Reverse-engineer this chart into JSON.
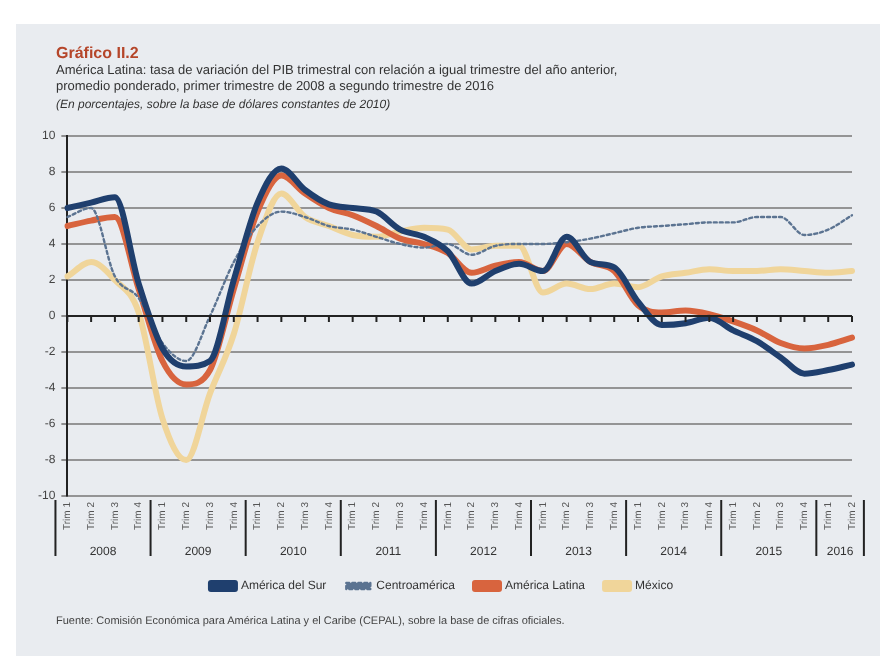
{
  "chart_data": {
    "type": "line",
    "title": "Gráfico II.2",
    "subtitle": "América Latina: tasa de variación del PIB trimestral con relación a igual trimestre del año anterior, promedio ponderado, primer trimestre de 2008 a segundo trimestre de 2016",
    "annotations": [
      "(En porcentajes, sobre la base de dólares constantes de 2010)",
      "Fuente: Comisión Económica para América Latina y el Caribe (CEPAL), sobre la base de cifras oficiales.",
      "2008",
      "2009",
      "2010",
      "2011",
      "2012",
      "2013",
      "2014",
      "2015",
      "2016"
    ],
    "categories": [
      "Trim 1",
      "Trim 2",
      "Trim 3",
      "Trim 4",
      "Trim 1",
      "Trim 2",
      "Trim 3",
      "Trim 4",
      "Trim 1",
      "Trim 2",
      "Trim 3",
      "Trim 4",
      "Trim 1",
      "Trim 2",
      "Trim 3",
      "Trim 4",
      "Trim 1",
      "Trim 2",
      "Trim 3",
      "Trim 4",
      "Trim 1",
      "Trim 2",
      "Trim 3",
      "Trim 4",
      "Trim 1",
      "Trim 2",
      "Trim 3",
      "Trim 4",
      "Trim 1",
      "Trim 2",
      "Trim 3",
      "Trim 4",
      "Trim 1",
      "Trim 2"
    ],
    "series": [
      {
        "name": "América del Sur",
        "color": "#1f3f6e",
        "values": [
          6.0,
          6.3,
          6.6,
          1.8,
          -1.8,
          -2.8,
          -2.5,
          2.0,
          6.3,
          8.2,
          7.0,
          6.2,
          6.0,
          5.8,
          4.8,
          4.4,
          3.6,
          1.8,
          2.5,
          2.9,
          2.5,
          4.4,
          3.0,
          2.7,
          0.8,
          -0.5,
          -0.4,
          -0.1,
          -0.8,
          -1.4,
          -2.3,
          -3.2,
          -3.0,
          -2.7
        ]
      },
      {
        "name": "Centroamérica",
        "color": "#5b7391",
        "line_style": "dotted",
        "values": [
          5.5,
          6.0,
          2.2,
          1.0,
          -1.5,
          -2.5,
          0.0,
          3.0,
          5.0,
          5.8,
          5.5,
          5.0,
          4.8,
          4.4,
          4.0,
          3.8,
          4.0,
          3.4,
          3.9,
          4.0,
          4.0,
          4.1,
          4.3,
          4.6,
          4.9,
          5.0,
          5.1,
          5.2,
          5.2,
          5.5,
          5.5,
          4.5,
          4.8,
          5.6
        ]
      },
      {
        "name": "América Latina",
        "color": "#d8643e",
        "values": [
          5.0,
          5.3,
          5.5,
          1.5,
          -2.5,
          -3.8,
          -3.0,
          1.5,
          5.8,
          7.8,
          6.8,
          6.0,
          5.6,
          5.0,
          4.3,
          4.0,
          3.5,
          2.4,
          2.8,
          3.0,
          2.5,
          4.0,
          3.0,
          2.5,
          0.6,
          0.2,
          0.3,
          0.1,
          -0.3,
          -0.8,
          -1.5,
          -1.8,
          -1.6,
          -1.2
        ]
      },
      {
        "name": "México",
        "color": "#f0d59a",
        "values": [
          2.2,
          3.0,
          2.0,
          0.2,
          -5.7,
          -8.0,
          -4.3,
          -1.0,
          4.1,
          6.8,
          5.5,
          5.0,
          4.5,
          4.4,
          4.7,
          4.9,
          4.8,
          3.7,
          3.9,
          3.9,
          1.3,
          1.8,
          1.5,
          1.8,
          1.6,
          2.2,
          2.4,
          2.6,
          2.5,
          2.5,
          2.6,
          2.5,
          2.4,
          2.5
        ]
      }
    ],
    "ylim": [
      -10,
      10
    ],
    "yticks": [
      -10,
      -8,
      -6,
      -4,
      -2,
      0,
      2,
      4,
      6,
      8,
      10
    ],
    "grid": "y",
    "legend": "bottom",
    "marker": "none"
  }
}
